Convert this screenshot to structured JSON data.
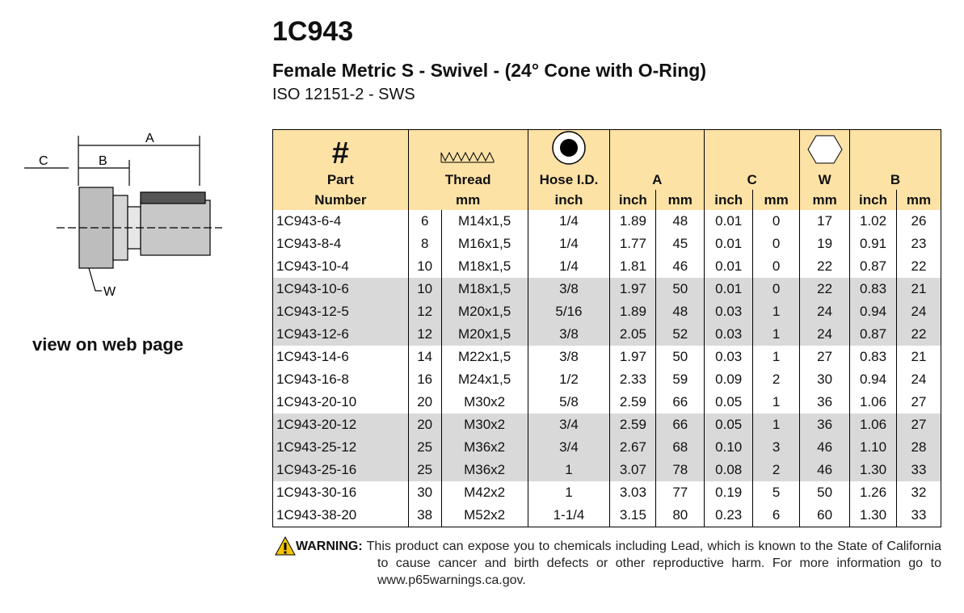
{
  "header": {
    "title": "1C943",
    "subtitle": "Female Metric S - Swivel - (24° Cone with O-Ring)",
    "standard": "ISO 12151-2 - SWS"
  },
  "diagram": {
    "labels": {
      "a": "A",
      "b": "B",
      "c": "C",
      "w": "W"
    },
    "link": "view on web page"
  },
  "table": {
    "header": {
      "symbol": "#",
      "part": "Part",
      "part_sub": "Number",
      "thread": "Thread",
      "thread_unit": "mm",
      "hose": "Hose I.D.",
      "hose_unit": "inch",
      "a": "A",
      "a_units": [
        "inch",
        "mm"
      ],
      "c": "C",
      "c_units": [
        "inch",
        "mm"
      ],
      "w": "W",
      "w_unit": "mm",
      "b": "B",
      "b_units": [
        "inch",
        "mm"
      ]
    },
    "rows": [
      [
        "1C943-6-4",
        "6",
        "M14x1,5",
        "1/4",
        "1.89",
        "48",
        "0.01",
        "0",
        "17",
        "1.02",
        "26"
      ],
      [
        "1C943-8-4",
        "8",
        "M16x1,5",
        "1/4",
        "1.77",
        "45",
        "0.01",
        "0",
        "19",
        "0.91",
        "23"
      ],
      [
        "1C943-10-4",
        "10",
        "M18x1,5",
        "1/4",
        "1.81",
        "46",
        "0.01",
        "0",
        "22",
        "0.87",
        "22"
      ],
      [
        "1C943-10-6",
        "10",
        "M18x1,5",
        "3/8",
        "1.97",
        "50",
        "0.01",
        "0",
        "22",
        "0.83",
        "21"
      ],
      [
        "1C943-12-5",
        "12",
        "M20x1,5",
        "5/16",
        "1.89",
        "48",
        "0.03",
        "1",
        "24",
        "0.94",
        "24"
      ],
      [
        "1C943-12-6",
        "12",
        "M20x1,5",
        "3/8",
        "2.05",
        "52",
        "0.03",
        "1",
        "24",
        "0.87",
        "22"
      ],
      [
        "1C943-14-6",
        "14",
        "M22x1,5",
        "3/8",
        "1.97",
        "50",
        "0.03",
        "1",
        "27",
        "0.83",
        "21"
      ],
      [
        "1C943-16-8",
        "16",
        "M24x1,5",
        "1/2",
        "2.33",
        "59",
        "0.09",
        "2",
        "30",
        "0.94",
        "24"
      ],
      [
        "1C943-20-10",
        "20",
        "M30x2",
        "5/8",
        "2.59",
        "66",
        "0.05",
        "1",
        "36",
        "1.06",
        "27"
      ],
      [
        "1C943-20-12",
        "20",
        "M30x2",
        "3/4",
        "2.59",
        "66",
        "0.05",
        "1",
        "36",
        "1.06",
        "27"
      ],
      [
        "1C943-25-12",
        "25",
        "M36x2",
        "3/4",
        "2.67",
        "68",
        "0.10",
        "3",
        "46",
        "1.10",
        "28"
      ],
      [
        "1C943-25-16",
        "25",
        "M36x2",
        "1",
        "3.07",
        "78",
        "0.08",
        "2",
        "46",
        "1.30",
        "33"
      ],
      [
        "1C943-30-16",
        "30",
        "M42x2",
        "1",
        "3.03",
        "77",
        "0.19",
        "5",
        "50",
        "1.26",
        "32"
      ],
      [
        "1C943-38-20",
        "38",
        "M52x2",
        "1-1/4",
        "3.15",
        "80",
        "0.23",
        "6",
        "60",
        "1.30",
        "33"
      ]
    ]
  },
  "warning": {
    "label": "WARNING:",
    "text": "This product can expose you to chemicals including Lead, which is known to the State of California to cause cancer and birth defects or other reproductive harm.  For more information go to www.p65warnings.ca.gov."
  }
}
